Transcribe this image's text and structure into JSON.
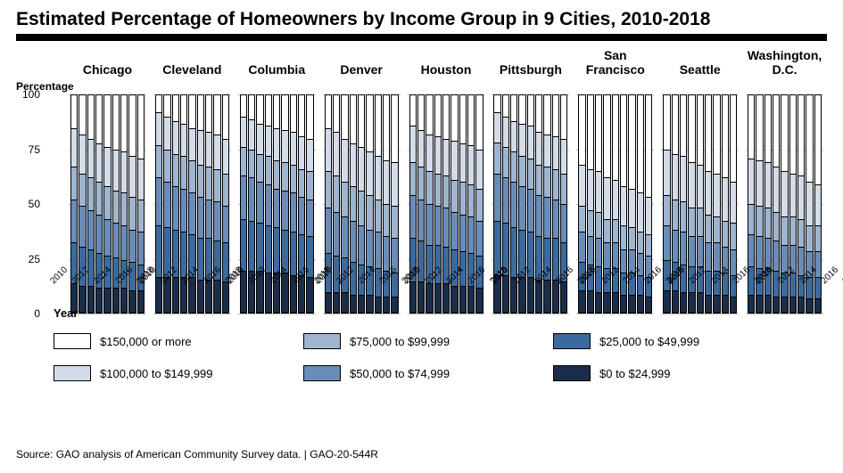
{
  "title": "Estimated Percentage of Homeowners by Income Group in 9 Cities, 2010-2018",
  "y_axis_label": "Percentage",
  "x_axis_label": "Year",
  "source": "Source: GAO analysis of American Community Survey data.  |  GAO-20-544R",
  "chart": {
    "type": "stacked-bar-small-multiples",
    "ylim": [
      0,
      100
    ],
    "yticks": [
      0,
      25,
      50,
      75,
      100
    ],
    "ytick_labels": [
      "0",
      "25",
      "50",
      "75",
      "100"
    ],
    "years": [
      2010,
      2011,
      2012,
      2013,
      2014,
      2015,
      2016,
      2017,
      2018
    ],
    "x_tick_labels": [
      "2010",
      "",
      "2012",
      "",
      "2014",
      "",
      "2016",
      "",
      "2018"
    ],
    "background_color": "#ffffff",
    "grid_color": "#bfbfbf",
    "bar_border_color": "#000000",
    "title_fontsize": 21,
    "panel_label_fontsize": 14,
    "tick_fontsize": 12,
    "legend_fontsize": 13,
    "segments": [
      {
        "key": "s0",
        "label": "$0 to $24,999",
        "color": "#1a2d4a"
      },
      {
        "key": "s1",
        "label": "$25,000 to $49,999",
        "color": "#3b6a9e"
      },
      {
        "key": "s2",
        "label": "$50,000 to $74,999",
        "color": "#6a8cb8"
      },
      {
        "key": "s3",
        "label": "$75,000 to $99,999",
        "color": "#9fb4cf"
      },
      {
        "key": "s4",
        "label": "$100,000 to $149,999",
        "color": "#d3dce8"
      },
      {
        "key": "s5",
        "label": "$150,000 or more",
        "color": "#ffffff"
      }
    ],
    "legend_order": [
      "s5",
      "s4",
      "s3",
      "s2",
      "s1",
      "s0"
    ],
    "legend_grid_positions": {
      "s5": [
        0,
        0
      ],
      "s3": [
        0,
        1
      ],
      "s1": [
        0,
        2
      ],
      "s4": [
        1,
        0
      ],
      "s2": [
        1,
        1
      ],
      "s0": [
        1,
        2
      ]
    },
    "panels": [
      {
        "city": "Chicago",
        "data": [
          [
            13,
            19,
            20,
            15,
            18,
            15
          ],
          [
            12,
            18,
            19,
            15,
            18,
            18
          ],
          [
            12,
            17,
            18,
            15,
            18,
            20
          ],
          [
            11,
            16,
            18,
            15,
            18,
            22
          ],
          [
            11,
            15,
            17,
            15,
            18,
            24
          ],
          [
            11,
            14,
            16,
            15,
            19,
            25
          ],
          [
            11,
            13,
            16,
            15,
            19,
            26
          ],
          [
            10,
            13,
            15,
            15,
            19,
            28
          ],
          [
            10,
            12,
            15,
            15,
            19,
            29
          ]
        ]
      },
      {
        "city": "Cleveland",
        "data": [
          [
            16,
            24,
            22,
            15,
            15,
            8
          ],
          [
            16,
            23,
            21,
            15,
            15,
            10
          ],
          [
            16,
            22,
            20,
            15,
            15,
            12
          ],
          [
            16,
            21,
            20,
            15,
            15,
            13
          ],
          [
            16,
            20,
            19,
            15,
            15,
            15
          ],
          [
            15,
            19,
            19,
            15,
            16,
            16
          ],
          [
            15,
            19,
            18,
            15,
            16,
            17
          ],
          [
            15,
            18,
            18,
            15,
            16,
            18
          ],
          [
            14,
            18,
            17,
            15,
            16,
            20
          ]
        ]
      },
      {
        "city": "Columbia",
        "data": [
          [
            19,
            24,
            20,
            13,
            14,
            10
          ],
          [
            19,
            23,
            20,
            13,
            14,
            11
          ],
          [
            19,
            22,
            19,
            13,
            14,
            13
          ],
          [
            18,
            22,
            19,
            13,
            14,
            14
          ],
          [
            18,
            21,
            18,
            13,
            15,
            15
          ],
          [
            18,
            20,
            18,
            13,
            15,
            16
          ],
          [
            17,
            20,
            18,
            13,
            15,
            17
          ],
          [
            17,
            19,
            17,
            13,
            15,
            19
          ],
          [
            16,
            19,
            17,
            13,
            15,
            20
          ]
        ]
      },
      {
        "city": "Denver",
        "data": [
          [
            9,
            18,
            21,
            17,
            20,
            15
          ],
          [
            9,
            17,
            20,
            17,
            20,
            17
          ],
          [
            9,
            16,
            19,
            16,
            20,
            20
          ],
          [
            8,
            15,
            19,
            16,
            20,
            22
          ],
          [
            8,
            14,
            18,
            16,
            20,
            24
          ],
          [
            8,
            13,
            17,
            16,
            20,
            26
          ],
          [
            7,
            13,
            17,
            15,
            20,
            28
          ],
          [
            7,
            12,
            16,
            15,
            20,
            30
          ],
          [
            7,
            11,
            16,
            15,
            20,
            31
          ]
        ]
      },
      {
        "city": "Houston",
        "data": [
          [
            14,
            20,
            20,
            15,
            17,
            14
          ],
          [
            14,
            19,
            19,
            15,
            17,
            16
          ],
          [
            13,
            18,
            19,
            15,
            17,
            18
          ],
          [
            13,
            18,
            18,
            15,
            17,
            19
          ],
          [
            13,
            17,
            18,
            15,
            17,
            20
          ],
          [
            12,
            17,
            17,
            15,
            18,
            21
          ],
          [
            12,
            16,
            17,
            15,
            18,
            22
          ],
          [
            12,
            15,
            17,
            15,
            18,
            23
          ],
          [
            11,
            15,
            16,
            15,
            18,
            25
          ]
        ]
      },
      {
        "city": "Pittsburgh",
        "data": [
          [
            17,
            25,
            22,
            14,
            14,
            8
          ],
          [
            17,
            24,
            21,
            14,
            14,
            10
          ],
          [
            16,
            23,
            21,
            14,
            14,
            12
          ],
          [
            16,
            22,
            20,
            14,
            15,
            13
          ],
          [
            16,
            21,
            20,
            14,
            15,
            14
          ],
          [
            15,
            20,
            19,
            14,
            15,
            17
          ],
          [
            15,
            19,
            19,
            14,
            15,
            18
          ],
          [
            15,
            19,
            18,
            14,
            15,
            19
          ],
          [
            14,
            18,
            18,
            14,
            16,
            20
          ]
        ]
      },
      {
        "city": "San Francisco",
        "data": [
          [
            10,
            13,
            14,
            12,
            19,
            32
          ],
          [
            10,
            12,
            13,
            12,
            19,
            34
          ],
          [
            9,
            12,
            13,
            12,
            19,
            35
          ],
          [
            9,
            11,
            12,
            11,
            19,
            38
          ],
          [
            9,
            11,
            12,
            11,
            18,
            39
          ],
          [
            8,
            10,
            11,
            11,
            18,
            42
          ],
          [
            8,
            10,
            11,
            10,
            18,
            43
          ],
          [
            8,
            9,
            10,
            10,
            18,
            45
          ],
          [
            7,
            9,
            10,
            10,
            17,
            47
          ]
        ]
      },
      {
        "city": "Seattle",
        "data": [
          [
            10,
            14,
            16,
            14,
            21,
            25
          ],
          [
            10,
            13,
            15,
            14,
            21,
            27
          ],
          [
            9,
            13,
            15,
            14,
            21,
            28
          ],
          [
            9,
            12,
            14,
            13,
            21,
            31
          ],
          [
            9,
            12,
            14,
            13,
            20,
            32
          ],
          [
            8,
            11,
            13,
            13,
            20,
            35
          ],
          [
            8,
            11,
            13,
            12,
            20,
            36
          ],
          [
            8,
            10,
            12,
            12,
            20,
            38
          ],
          [
            7,
            10,
            12,
            12,
            19,
            40
          ]
        ]
      },
      {
        "city": "Washington, D.C.",
        "data": [
          [
            8,
            13,
            15,
            14,
            21,
            29
          ],
          [
            8,
            12,
            15,
            14,
            21,
            30
          ],
          [
            8,
            12,
            14,
            14,
            21,
            31
          ],
          [
            7,
            12,
            14,
            13,
            21,
            33
          ],
          [
            7,
            11,
            13,
            13,
            21,
            35
          ],
          [
            7,
            11,
            13,
            13,
            20,
            36
          ],
          [
            7,
            10,
            13,
            13,
            20,
            37
          ],
          [
            6,
            10,
            12,
            12,
            20,
            40
          ],
          [
            6,
            10,
            12,
            12,
            19,
            41
          ]
        ]
      }
    ]
  }
}
